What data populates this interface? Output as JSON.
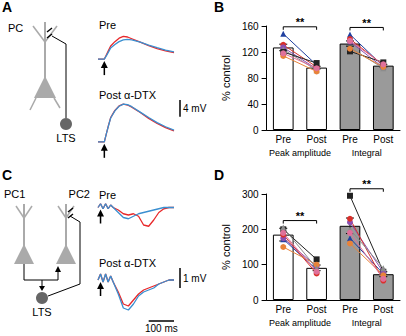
{
  "panel_labels": [
    "A",
    "B",
    "C",
    "D"
  ],
  "diagrams": [
    {
      "labels": [
        "PC",
        "LTS"
      ]
    },
    {
      "labels": [
        "PC1",
        "PC2",
        "LTS"
      ]
    }
  ],
  "chart_data": [
    {
      "type": "line",
      "title": "Pre",
      "tick_labels": false,
      "grid": false,
      "x": [
        0,
        15,
        20,
        25,
        30,
        40,
        50,
        60,
        70,
        80,
        100,
        120,
        140,
        160,
        180
      ],
      "xlim": [
        0,
        180
      ],
      "ylim": [
        -1,
        10
      ],
      "series": [
        {
          "color": "#e8282a",
          "values": [
            0,
            0,
            1.5,
            3,
            4.5,
            6,
            7.2,
            7.8,
            7.6,
            7,
            5.8,
            4.6,
            3.6,
            2.8,
            2.2
          ]
        },
        {
          "color": "#3a8fd0",
          "values": [
            0,
            0,
            1.2,
            2.5,
            3.8,
            5,
            6,
            6.6,
            6.8,
            6.6,
            5.8,
            4.8,
            3.9,
            3.1,
            2.5
          ]
        }
      ]
    },
    {
      "type": "line",
      "title": "Post α-DTX",
      "tick_labels": false,
      "grid": false,
      "x": [
        0,
        15,
        20,
        25,
        30,
        40,
        50,
        60,
        70,
        80,
        100,
        120,
        140,
        160,
        180
      ],
      "xlim": [
        0,
        180
      ],
      "ylim": [
        -1,
        10
      ],
      "series": [
        {
          "color": "#e8282a",
          "values": [
            0,
            0,
            2,
            4,
            5.8,
            7.5,
            8.6,
            9,
            8.8,
            8.3,
            7,
            5.6,
            4.4,
            3.4,
            2.6
          ]
        },
        {
          "color": "#3a8fd0",
          "values": [
            0,
            0,
            2,
            3.9,
            5.7,
            7.4,
            8.5,
            9,
            8.9,
            8.4,
            7.1,
            5.8,
            4.6,
            3.6,
            2.8
          ]
        }
      ],
      "scale_bars": [
        {
          "axis": "y",
          "value": 4,
          "label": "4 mV"
        }
      ]
    },
    {
      "type": "bar",
      "y_label": "% control",
      "grid": false,
      "categories": [
        "Pre",
        "Post",
        "Pre",
        "Post"
      ],
      "groups": [
        "Peak amplitude",
        "Integral"
      ],
      "values": [
        127,
        96,
        133,
        99
      ],
      "errors": [
        5,
        2,
        4,
        2
      ],
      "colors": [
        "#ffffff",
        "#ffffff",
        "#9a9a9a",
        "#9a9a9a"
      ],
      "ylim": [
        0,
        160
      ],
      "yticks": [
        0,
        40,
        80,
        120,
        160
      ],
      "subjects": [
        {
          "color": "#2040a0",
          "marker": "triangle",
          "values": [
            148,
            100,
            147,
            98
          ]
        },
        {
          "color": "#d9302b",
          "marker": "circle",
          "values": [
            131,
            97,
            140,
            100
          ]
        },
        {
          "color": "#8b4fb0",
          "marker": "circle",
          "values": [
            127,
            94,
            136,
            96
          ]
        },
        {
          "color": "#8c8c8c",
          "marker": "triangle",
          "values": [
            124,
            92,
            127,
            95
          ]
        },
        {
          "color": "#222222",
          "marker": "square",
          "values": [
            120,
            103,
            121,
            104
          ]
        },
        {
          "color": "#e8833a",
          "marker": "circle",
          "values": [
            114,
            90,
            125,
            97
          ]
        },
        {
          "color": "#e0709a",
          "marker": "circle",
          "values": [
            118,
            95,
            137,
            101
          ]
        }
      ],
      "annotations": [
        "**",
        "**"
      ]
    },
    {
      "type": "line",
      "title": "Pre",
      "tick_labels": false,
      "grid": false,
      "x": [
        0,
        10,
        20,
        30,
        40,
        50,
        60,
        80,
        100,
        120,
        140,
        160,
        180,
        200,
        220,
        240,
        260,
        280,
        300
      ],
      "xlim": [
        0,
        300
      ],
      "ylim": [
        -1.8,
        0.6
      ],
      "series": [
        {
          "color": "#e8282a",
          "values": [
            0,
            0.3,
            -0.1,
            0.3,
            -0.1,
            0.2,
            0,
            -0.2,
            -0.5,
            -0.6,
            -0.5,
            -0.7,
            -1.4,
            -1.5,
            -1.0,
            -0.4,
            -0.1,
            0,
            0
          ]
        },
        {
          "color": "#3a8fd0",
          "values": [
            0,
            0.3,
            -0.1,
            0.3,
            -0.1,
            0.2,
            0,
            -0.4,
            -0.8,
            -0.9,
            -0.7,
            -0.5,
            -0.4,
            -0.3,
            -0.2,
            -0.1,
            0,
            0,
            0
          ]
        }
      ]
    },
    {
      "type": "line",
      "title": "Post α-DTX",
      "tick_labels": false,
      "grid": false,
      "x": [
        0,
        10,
        20,
        30,
        40,
        50,
        60,
        80,
        100,
        120,
        140,
        160,
        180,
        200,
        220,
        240,
        260,
        280,
        300
      ],
      "xlim": [
        0,
        300
      ],
      "ylim": [
        -1.8,
        0.6
      ],
      "series": [
        {
          "color": "#e8282a",
          "values": [
            0,
            0.3,
            -0.1,
            0.3,
            -0.1,
            0.2,
            -0.1,
            -0.6,
            -1.2,
            -1.3,
            -1.0,
            -0.7,
            -0.5,
            -0.4,
            -0.3,
            -0.2,
            -0.1,
            0,
            0
          ]
        },
        {
          "color": "#3a8fd0",
          "values": [
            0,
            0.3,
            -0.1,
            0.3,
            -0.1,
            0.2,
            -0.1,
            -0.7,
            -1.4,
            -1.5,
            -1.2,
            -0.8,
            -0.6,
            -0.5,
            -0.4,
            -0.2,
            -0.1,
            0,
            0
          ]
        }
      ],
      "scale_bars": [
        {
          "axis": "y",
          "value": 1,
          "label": "1 mV"
        },
        {
          "axis": "x",
          "value": 100,
          "label": "100 ms"
        }
      ]
    },
    {
      "type": "bar",
      "y_label": "% control",
      "grid": false,
      "categories": [
        "Pre",
        "Post",
        "Pre",
        "Post"
      ],
      "groups": [
        "Peak amplitude",
        "Integral"
      ],
      "values": [
        185,
        91,
        210,
        73
      ],
      "errors": [
        18,
        8,
        22,
        7
      ],
      "colors": [
        "#ffffff",
        "#ffffff",
        "#9a9a9a",
        "#9a9a9a"
      ],
      "ylim": [
        0,
        300
      ],
      "yticks": [
        0,
        100,
        200,
        300
      ],
      "subjects": [
        {
          "color": "#2040a0",
          "marker": "triangle",
          "values": [
            172,
            86,
            175,
            74
          ]
        },
        {
          "color": "#222222",
          "marker": "square",
          "values": [
            200,
            115,
            295,
            80
          ]
        },
        {
          "color": "#8b4fb0",
          "marker": "circle",
          "values": [
            175,
            95,
            220,
            78
          ]
        },
        {
          "color": "#d9302b",
          "marker": "circle",
          "values": [
            185,
            75,
            230,
            55
          ]
        },
        {
          "color": "#e8833a",
          "marker": "circle",
          "values": [
            150,
            100,
            160,
            70
          ]
        },
        {
          "color": "#8c8c8c",
          "marker": "triangle",
          "values": [
            205,
            90,
            200,
            90
          ]
        },
        {
          "color": "#e0709a",
          "marker": "circle",
          "values": [
            190,
            80,
            190,
            60
          ]
        }
      ],
      "annotations": [
        "**",
        "**"
      ]
    }
  ]
}
